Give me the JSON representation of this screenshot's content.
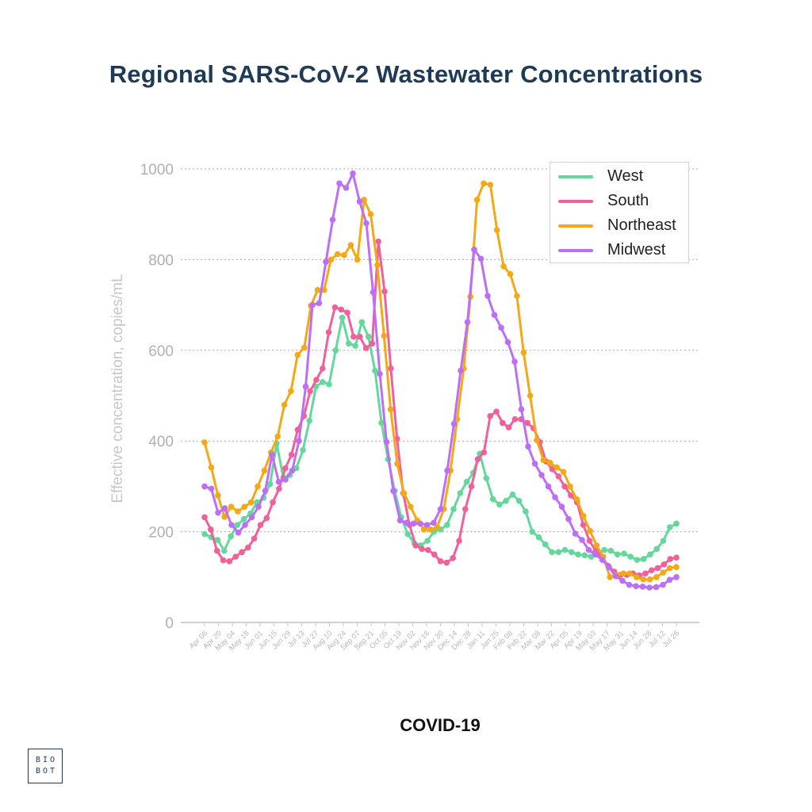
{
  "header": {
    "title": "Regional SARS-CoV-2 Wastewater Concentrations"
  },
  "footer": {
    "title": "COVID-19",
    "logo_lines": [
      "BIO",
      "BOT"
    ]
  },
  "chart_data": {
    "type": "line",
    "title": "Regional SARS-CoV-2 Wastewater Concentrations",
    "xlabel": "",
    "ylabel": "Effective concentration, copies/mL",
    "ylim": [
      0,
      1000
    ],
    "yticks": [
      0,
      200,
      400,
      600,
      800,
      1000
    ],
    "grid": true,
    "legend_position": "top-right",
    "x_tick_labels": [
      "Apr 06",
      "Apr 20",
      "May 04",
      "May 18",
      "Jun 01",
      "Jun 15",
      "Jun 29",
      "Jul 13",
      "Jul 27",
      "Aug 10",
      "Aug 24",
      "Sep 07",
      "Sep 21",
      "Oct 05",
      "Oct 19",
      "Nov 02",
      "Nov 16",
      "Nov 30",
      "Dec 14",
      "Dec 28",
      "Jan 11",
      "Jan 25",
      "Feb 08",
      "Feb 22",
      "Mar 08",
      "Mar 22",
      "Apr 05",
      "Apr 19",
      "May 03",
      "May 17",
      "May 31",
      "Jun 14",
      "Jun 28",
      "Jul 12",
      "Jul 26"
    ],
    "series": [
      {
        "name": "West",
        "color": "#63d89a",
        "values": [
          195,
          188,
          182,
          158,
          190,
          215,
          228,
          240,
          265,
          275,
          305,
          395,
          320,
          325,
          340,
          380,
          445,
          520,
          530,
          525,
          600,
          672,
          615,
          610,
          662,
          630,
          555,
          440,
          360,
          290,
          232,
          195,
          175,
          170,
          180,
          200,
          205,
          215,
          250,
          285,
          310,
          330,
          372,
          318,
          272,
          260,
          268,
          282,
          268,
          245,
          200,
          188,
          172,
          155,
          155,
          160,
          155,
          150,
          148,
          145,
          150,
          160,
          158,
          150,
          152,
          145,
          138,
          140,
          150,
          162,
          180,
          210,
          218
        ]
      },
      {
        "name": "South",
        "color": "#f0609a",
        "values": [
          232,
          205,
          158,
          137,
          135,
          145,
          155,
          165,
          185,
          215,
          230,
          265,
          295,
          340,
          370,
          425,
          455,
          510,
          535,
          560,
          640,
          695,
          690,
          683,
          630,
          630,
          605,
          615,
          840,
          730,
          560,
          405,
          285,
          215,
          170,
          162,
          160,
          150,
          135,
          132,
          142,
          180,
          250,
          300,
          360,
          375,
          455,
          465,
          440,
          430,
          448,
          448,
          440,
          428,
          398,
          355,
          338,
          322,
          300,
          280,
          265,
          215,
          180,
          158,
          145,
          125,
          112,
          105,
          105,
          108,
          104,
          108,
          115,
          120,
          128,
          140,
          143
        ]
      },
      {
        "name": "Northeast",
        "color": "#f5a816",
        "values": [
          397,
          342,
          280,
          233,
          255,
          245,
          255,
          265,
          300,
          335,
          375,
          410,
          480,
          510,
          590,
          606,
          698,
          733,
          733,
          800,
          812,
          810,
          832,
          800,
          932,
          900,
          788,
          632,
          470,
          350,
          285,
          255,
          225,
          205,
          205,
          210,
          250,
          335,
          448,
          560,
          718,
          932,
          968,
          965,
          865,
          785,
          768,
          720,
          595,
          500,
          402,
          358,
          352,
          342,
          332,
          300,
          272,
          235,
          202,
          170,
          145,
          100,
          105,
          108,
          108,
          100,
          95,
          95,
          100,
          110,
          120,
          122
        ]
      },
      {
        "name": "Midwest",
        "color": "#bd6ef6",
        "values": [
          300,
          295,
          242,
          252,
          215,
          198,
          215,
          232,
          255,
          290,
          370,
          310,
          315,
          335,
          400,
          520,
          700,
          704,
          795,
          888,
          968,
          958,
          990,
          928,
          880,
          728,
          548,
          398,
          290,
          225,
          220,
          218,
          218,
          215,
          220,
          250,
          335,
          438,
          555,
          662,
          822,
          802,
          720,
          678,
          650,
          618,
          575,
          470,
          388,
          350,
          325,
          300,
          276,
          255,
          228,
          196,
          182,
          160,
          150,
          138,
          122,
          102,
          92,
          83,
          80,
          79,
          77,
          78,
          83,
          94,
          100
        ]
      }
    ]
  }
}
